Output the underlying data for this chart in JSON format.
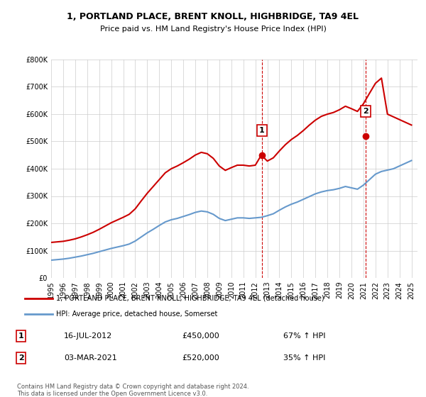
{
  "title": "1, PORTLAND PLACE, BRENT KNOLL, HIGHBRIDGE, TA9 4EL",
  "subtitle": "Price paid vs. HM Land Registry's House Price Index (HPI)",
  "legend_line1": "1, PORTLAND PLACE, BRENT KNOLL, HIGHBRIDGE, TA9 4EL (detached house)",
  "legend_line2": "HPI: Average price, detached house, Somerset",
  "footer1": "Contains HM Land Registry data © Crown copyright and database right 2024.",
  "footer2": "This data is licensed under the Open Government Licence v3.0.",
  "transaction1_label": "1",
  "transaction1_date": "16-JUL-2012",
  "transaction1_price": "£450,000",
  "transaction1_hpi": "67% ↑ HPI",
  "transaction2_label": "2",
  "transaction2_date": "03-MAR-2021",
  "transaction2_price": "£520,000",
  "transaction2_hpi": "35% ↑ HPI",
  "red_color": "#cc0000",
  "blue_color": "#6699cc",
  "dashed_color": "#cc0000",
  "ylim": [
    0,
    800000
  ],
  "yticks": [
    0,
    100000,
    200000,
    300000,
    400000,
    500000,
    600000,
    700000,
    800000
  ],
  "xlim_start": 1995.0,
  "xlim_end": 2025.5,
  "transaction1_x": 2012.54,
  "transaction1_y": 450000,
  "transaction2_x": 2021.17,
  "transaction2_y": 520000,
  "hpi_years": [
    1995.0,
    1995.5,
    1996.0,
    1996.5,
    1997.0,
    1997.5,
    1998.0,
    1998.5,
    1999.0,
    1999.5,
    2000.0,
    2000.5,
    2001.0,
    2001.5,
    2002.0,
    2002.5,
    2003.0,
    2003.5,
    2004.0,
    2004.5,
    2005.0,
    2005.5,
    2006.0,
    2006.5,
    2007.0,
    2007.5,
    2008.0,
    2008.5,
    2009.0,
    2009.5,
    2010.0,
    2010.5,
    2011.0,
    2011.5,
    2012.0,
    2012.5,
    2013.0,
    2013.5,
    2014.0,
    2014.5,
    2015.0,
    2015.5,
    2016.0,
    2016.5,
    2017.0,
    2017.5,
    2018.0,
    2018.5,
    2019.0,
    2019.5,
    2020.0,
    2020.5,
    2021.0,
    2021.5,
    2022.0,
    2022.5,
    2023.0,
    2023.5,
    2024.0,
    2024.5,
    2025.0
  ],
  "hpi_values": [
    65000,
    67000,
    69000,
    72000,
    76000,
    80000,
    85000,
    90000,
    96000,
    102000,
    108000,
    113000,
    118000,
    124000,
    135000,
    150000,
    165000,
    178000,
    192000,
    205000,
    213000,
    218000,
    225000,
    232000,
    240000,
    245000,
    242000,
    233000,
    218000,
    210000,
    215000,
    220000,
    220000,
    218000,
    220000,
    222000,
    228000,
    235000,
    248000,
    260000,
    270000,
    278000,
    288000,
    298000,
    308000,
    315000,
    320000,
    323000,
    328000,
    335000,
    330000,
    325000,
    340000,
    360000,
    380000,
    390000,
    395000,
    400000,
    410000,
    420000,
    430000
  ],
  "red_years": [
    1995.0,
    1995.5,
    1996.0,
    1996.5,
    1997.0,
    1997.5,
    1998.0,
    1998.5,
    1999.0,
    1999.5,
    2000.0,
    2000.5,
    2001.0,
    2001.5,
    2002.0,
    2002.5,
    2003.0,
    2003.5,
    2004.0,
    2004.5,
    2005.0,
    2005.5,
    2006.0,
    2006.5,
    2007.0,
    2007.5,
    2008.0,
    2008.5,
    2009.0,
    2009.5,
    2010.0,
    2010.5,
    2011.0,
    2011.5,
    2012.0,
    2012.5,
    2013.0,
    2013.5,
    2014.0,
    2014.5,
    2015.0,
    2015.5,
    2016.0,
    2016.5,
    2017.0,
    2017.5,
    2018.0,
    2018.5,
    2019.0,
    2019.5,
    2020.0,
    2020.5,
    2021.0,
    2021.5,
    2022.0,
    2022.5,
    2023.0,
    2023.5,
    2024.0,
    2024.5,
    2025.0
  ],
  "red_values": [
    130000,
    132000,
    134000,
    138000,
    143000,
    150000,
    158000,
    167000,
    178000,
    190000,
    202000,
    212000,
    222000,
    233000,
    253000,
    282000,
    310000,
    335000,
    360000,
    385000,
    400000,
    410000,
    422000,
    435000,
    450000,
    460000,
    455000,
    438000,
    410000,
    394000,
    404000,
    413000,
    413000,
    410000,
    413000,
    450000,
    428000,
    440000,
    465000,
    488000,
    507000,
    522000,
    540000,
    560000,
    578000,
    592000,
    600000,
    606000,
    616000,
    629000,
    620000,
    610000,
    638000,
    676000,
    713000,
    732000,
    600000,
    590000,
    580000,
    570000,
    560000
  ],
  "xtick_years": [
    1995,
    1996,
    1997,
    1998,
    1999,
    2000,
    2001,
    2002,
    2003,
    2004,
    2005,
    2006,
    2007,
    2008,
    2009,
    2010,
    2011,
    2012,
    2013,
    2014,
    2015,
    2016,
    2017,
    2018,
    2019,
    2020,
    2021,
    2022,
    2023,
    2024,
    2025
  ]
}
